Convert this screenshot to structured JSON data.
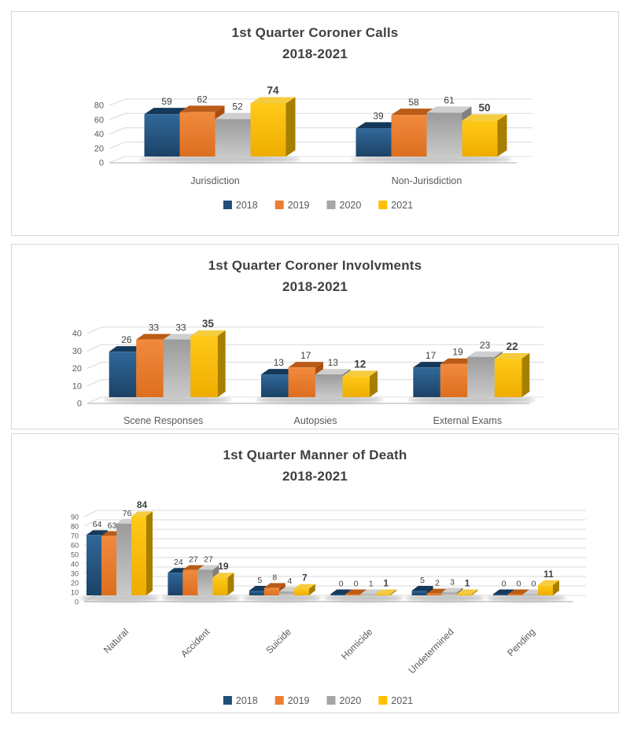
{
  "series_colors": {
    "2018": "#1F4E79",
    "2019": "#ED7D31",
    "2020": "#A6A6A6",
    "2021": "#FFC000"
  },
  "text_colors": {
    "title": "#404040",
    "data_label": "#404040",
    "axis_label": "#595959"
  },
  "chart_data": [
    {
      "type": "bar",
      "title": "1st Quarter Coroner Calls",
      "subtitle": "2018-2021",
      "categories": [
        "Jurisdiction",
        "Non-Jurisdiction"
      ],
      "series": [
        {
          "name": "2018",
          "values": [
            59,
            39
          ]
        },
        {
          "name": "2019",
          "values": [
            62,
            58
          ]
        },
        {
          "name": "2020",
          "values": [
            52,
            61
          ]
        },
        {
          "name": "2021",
          "values": [
            74,
            50
          ]
        }
      ],
      "ylim": [
        0,
        80
      ],
      "yticks": [
        0,
        20,
        40,
        60,
        80
      ],
      "grid": true,
      "legend": [
        "2018",
        "2019",
        "2020",
        "2021"
      ],
      "legend_position": "bottom",
      "category_label_rotation": 0,
      "bold_series": "2021"
    },
    {
      "type": "bar",
      "title": "1st Quarter Coroner Involvments",
      "subtitle": "2018-2021",
      "categories": [
        "Scene Responses",
        "Autopsies",
        "External Exams"
      ],
      "series": [
        {
          "name": "2018",
          "values": [
            26,
            13,
            17
          ]
        },
        {
          "name": "2019",
          "values": [
            33,
            17,
            19
          ]
        },
        {
          "name": "2020",
          "values": [
            33,
            13,
            23
          ]
        },
        {
          "name": "2021",
          "values": [
            35,
            12,
            22
          ]
        }
      ],
      "ylim": [
        0,
        40
      ],
      "yticks": [
        0,
        10,
        20,
        30,
        40
      ],
      "grid": true,
      "legend": null,
      "legend_position": "none",
      "category_label_rotation": 0,
      "bold_series": "2021"
    },
    {
      "type": "bar",
      "title": "1st Quarter Manner of Death",
      "subtitle": "2018-2021",
      "categories": [
        "Natural",
        "Accident",
        "Suicide",
        "Homicide",
        "Undetermined",
        "Pending"
      ],
      "series": [
        {
          "name": "2018",
          "values": [
            64,
            24,
            5,
            0,
            5,
            0
          ]
        },
        {
          "name": "2019",
          "values": [
            63,
            27,
            8,
            0,
            2,
            0
          ]
        },
        {
          "name": "2020",
          "values": [
            76,
            27,
            4,
            1,
            3,
            0
          ]
        },
        {
          "name": "2021",
          "values": [
            84,
            19,
            7,
            1,
            1,
            11
          ]
        }
      ],
      "ylim": [
        0,
        90
      ],
      "yticks": [
        0,
        10,
        20,
        30,
        40,
        50,
        60,
        70,
        80,
        90
      ],
      "grid": true,
      "legend": [
        "2018",
        "2019",
        "2020",
        "2021"
      ],
      "legend_position": "bottom",
      "category_label_rotation": 45,
      "bold_series": "2021"
    }
  ]
}
